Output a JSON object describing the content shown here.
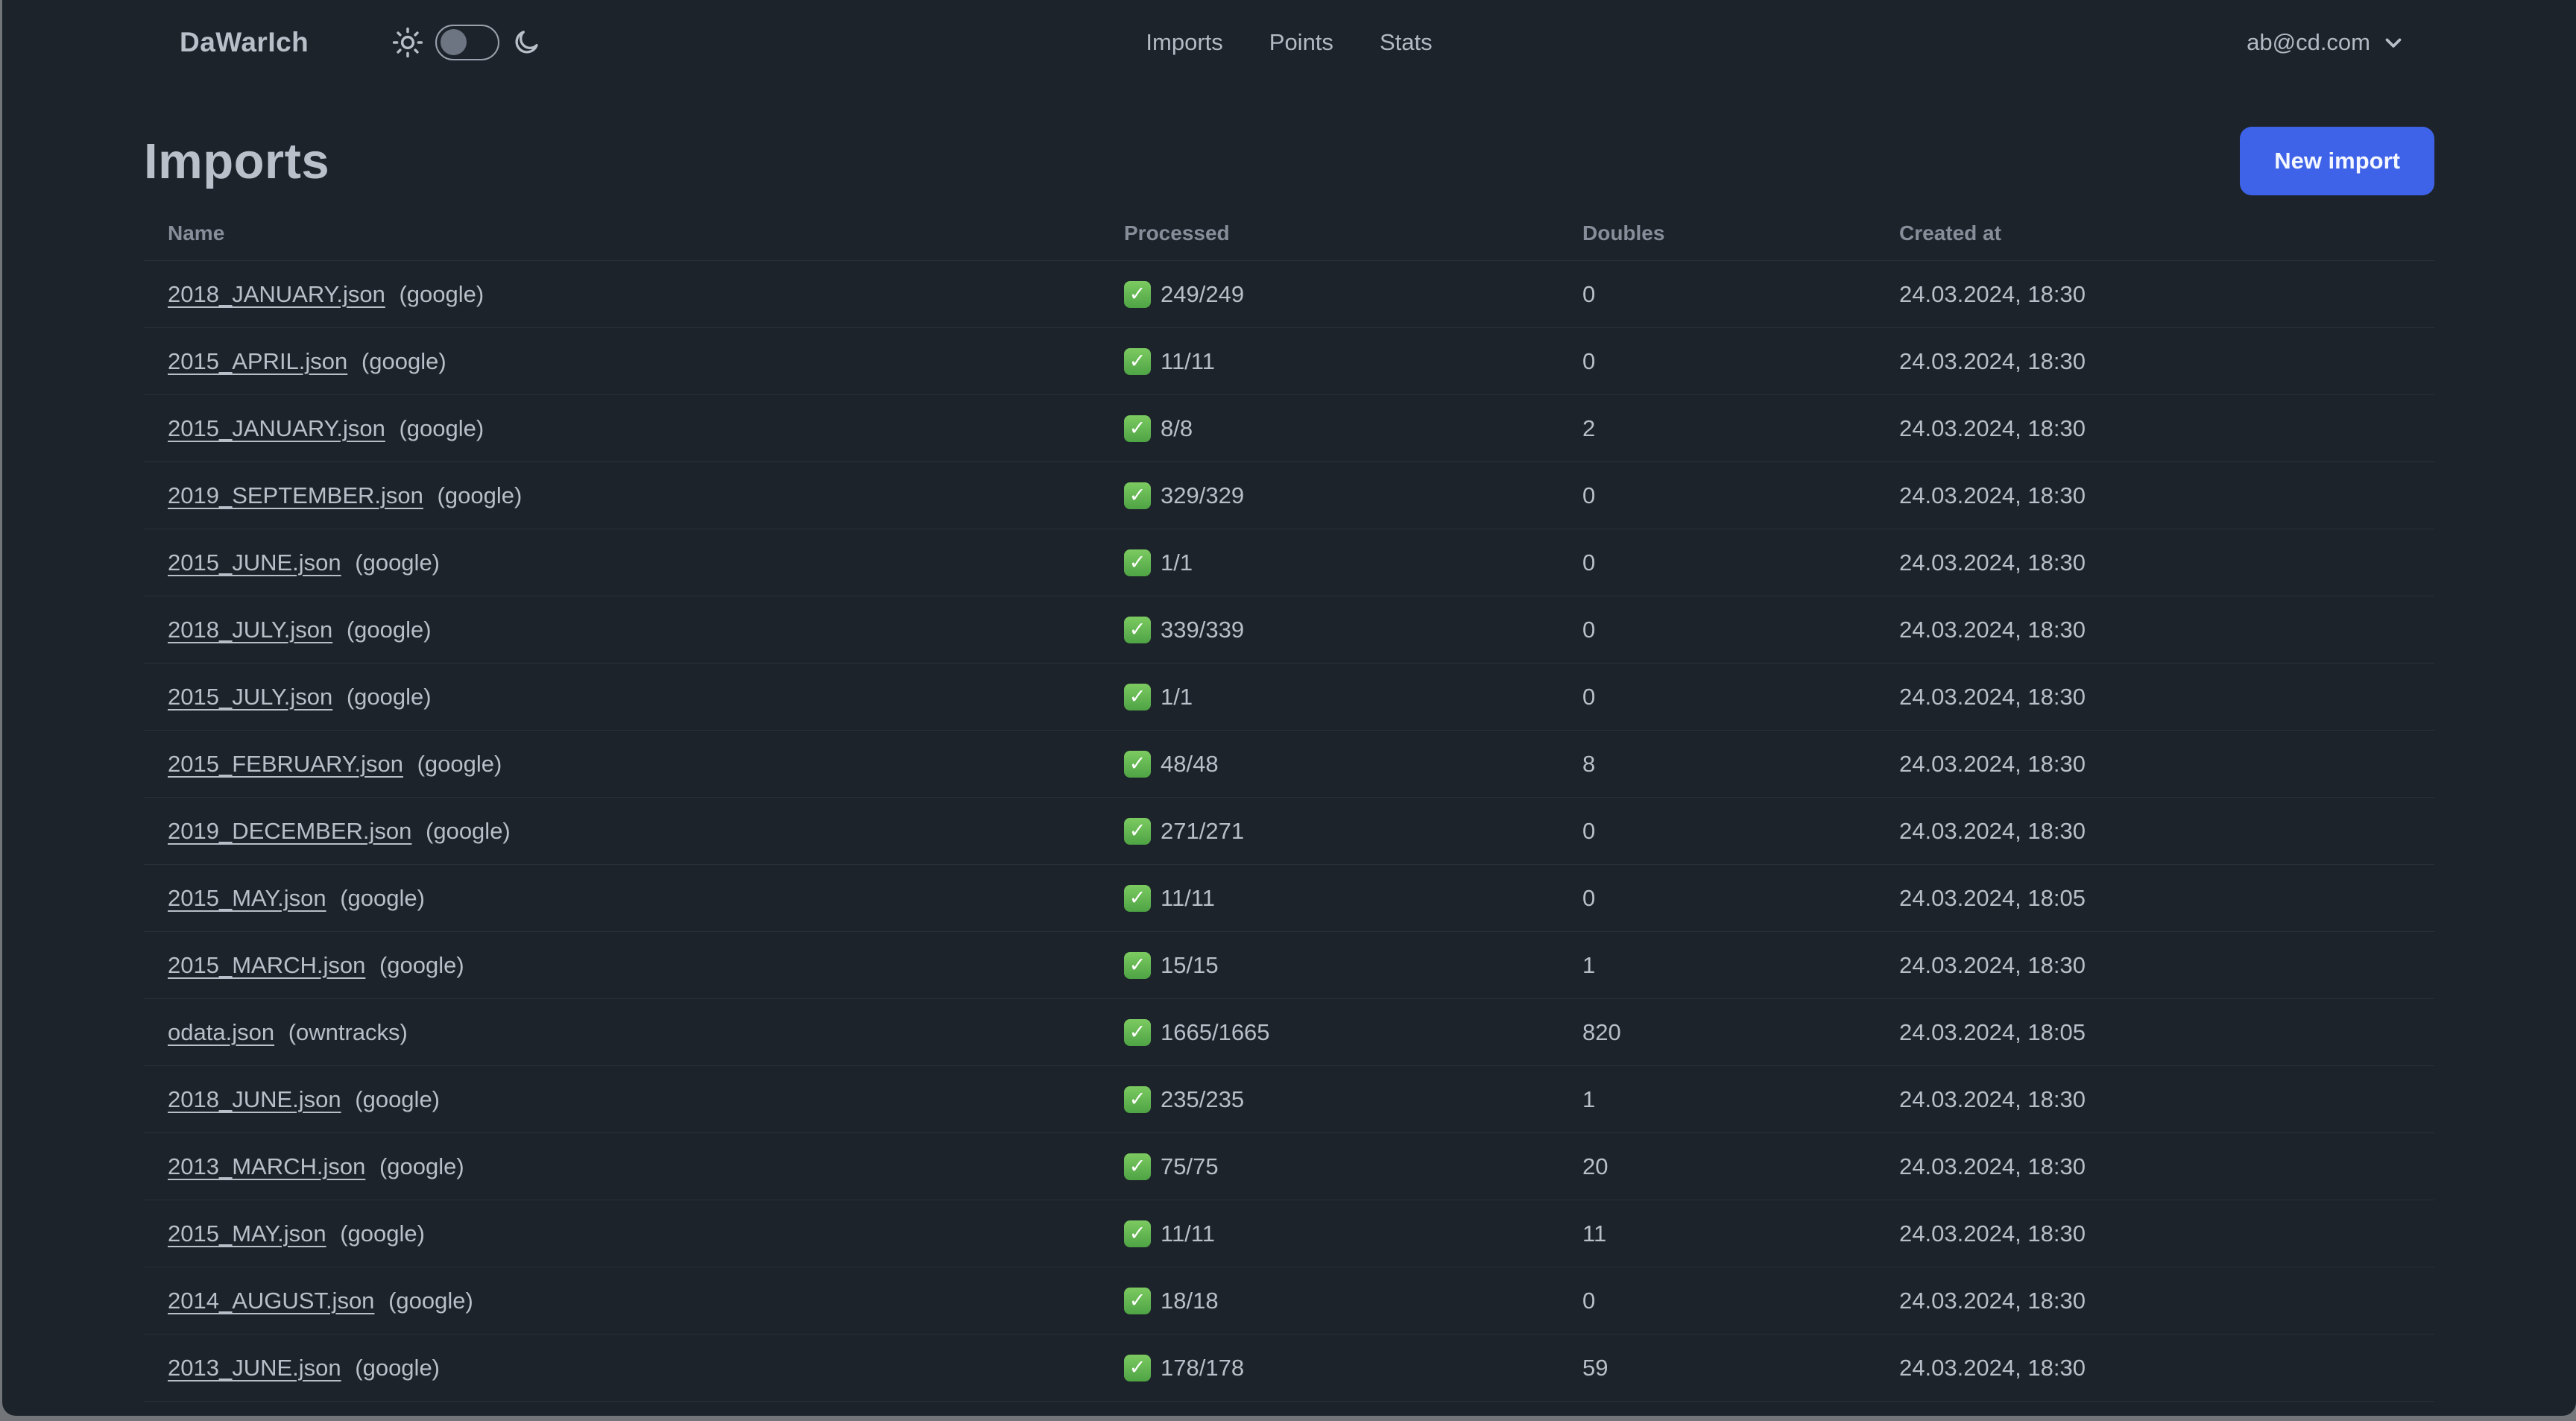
{
  "navbar": {
    "logo": "DaWarIch",
    "nav_items": [
      {
        "label": "Imports"
      },
      {
        "label": "Points"
      },
      {
        "label": "Stats"
      }
    ],
    "theme_toggle": {
      "state": "light-off",
      "sun_icon": "sun-icon",
      "moon_icon": "moon-icon"
    },
    "user": {
      "email": "ab@cd.com",
      "chevron_icon": "chevron-down-icon"
    }
  },
  "page": {
    "title": "Imports",
    "new_import_button": "New import"
  },
  "table": {
    "columns": [
      "Name",
      "Processed",
      "Doubles",
      "Created at"
    ],
    "rows": [
      {
        "name": "2018_JANUARY.json",
        "source": "(google)",
        "processed": "249/249",
        "doubles": "0",
        "created_at": "24.03.2024, 18:30"
      },
      {
        "name": "2015_APRIL.json",
        "source": "(google)",
        "processed": "11/11",
        "doubles": "0",
        "created_at": "24.03.2024, 18:30"
      },
      {
        "name": "2015_JANUARY.json",
        "source": "(google)",
        "processed": "8/8",
        "doubles": "2",
        "created_at": "24.03.2024, 18:30"
      },
      {
        "name": "2019_SEPTEMBER.json",
        "source": "(google)",
        "processed": "329/329",
        "doubles": "0",
        "created_at": "24.03.2024, 18:30"
      },
      {
        "name": "2015_JUNE.json",
        "source": "(google)",
        "processed": "1/1",
        "doubles": "0",
        "created_at": "24.03.2024, 18:30"
      },
      {
        "name": "2018_JULY.json",
        "source": "(google)",
        "processed": "339/339",
        "doubles": "0",
        "created_at": "24.03.2024, 18:30"
      },
      {
        "name": "2015_JULY.json",
        "source": "(google)",
        "processed": "1/1",
        "doubles": "0",
        "created_at": "24.03.2024, 18:30"
      },
      {
        "name": "2015_FEBRUARY.json",
        "source": "(google)",
        "processed": "48/48",
        "doubles": "8",
        "created_at": "24.03.2024, 18:30"
      },
      {
        "name": "2019_DECEMBER.json",
        "source": "(google)",
        "processed": "271/271",
        "doubles": "0",
        "created_at": "24.03.2024, 18:30"
      },
      {
        "name": "2015_MAY.json",
        "source": "(google)",
        "processed": "11/11",
        "doubles": "0",
        "created_at": "24.03.2024, 18:05"
      },
      {
        "name": "2015_MARCH.json",
        "source": "(google)",
        "processed": "15/15",
        "doubles": "1",
        "created_at": "24.03.2024, 18:30"
      },
      {
        "name": "odata.json",
        "source": "(owntracks)",
        "processed": "1665/1665",
        "doubles": "820",
        "created_at": "24.03.2024, 18:05"
      },
      {
        "name": "2018_JUNE.json",
        "source": "(google)",
        "processed": "235/235",
        "doubles": "1",
        "created_at": "24.03.2024, 18:30"
      },
      {
        "name": "2013_MARCH.json",
        "source": "(google)",
        "processed": "75/75",
        "doubles": "20",
        "created_at": "24.03.2024, 18:30"
      },
      {
        "name": "2015_MAY.json",
        "source": "(google)",
        "processed": "11/11",
        "doubles": "11",
        "created_at": "24.03.2024, 18:30"
      },
      {
        "name": "2014_AUGUST.json",
        "source": "(google)",
        "processed": "18/18",
        "doubles": "0",
        "created_at": "24.03.2024, 18:30"
      },
      {
        "name": "2013_JUNE.json",
        "source": "(google)",
        "processed": "178/178",
        "doubles": "59",
        "created_at": "24.03.2024, 18:30"
      }
    ],
    "partial_row_visible": true,
    "status_icon": "check-emoji"
  },
  "colors": {
    "background": "#1d232a",
    "desktop_edge": "#727579",
    "primary_button": "#3e63e8",
    "success_green": "#5cb552",
    "text": "#b9bfc8",
    "muted_text": "#878e9a",
    "divider": "#2a303a"
  }
}
